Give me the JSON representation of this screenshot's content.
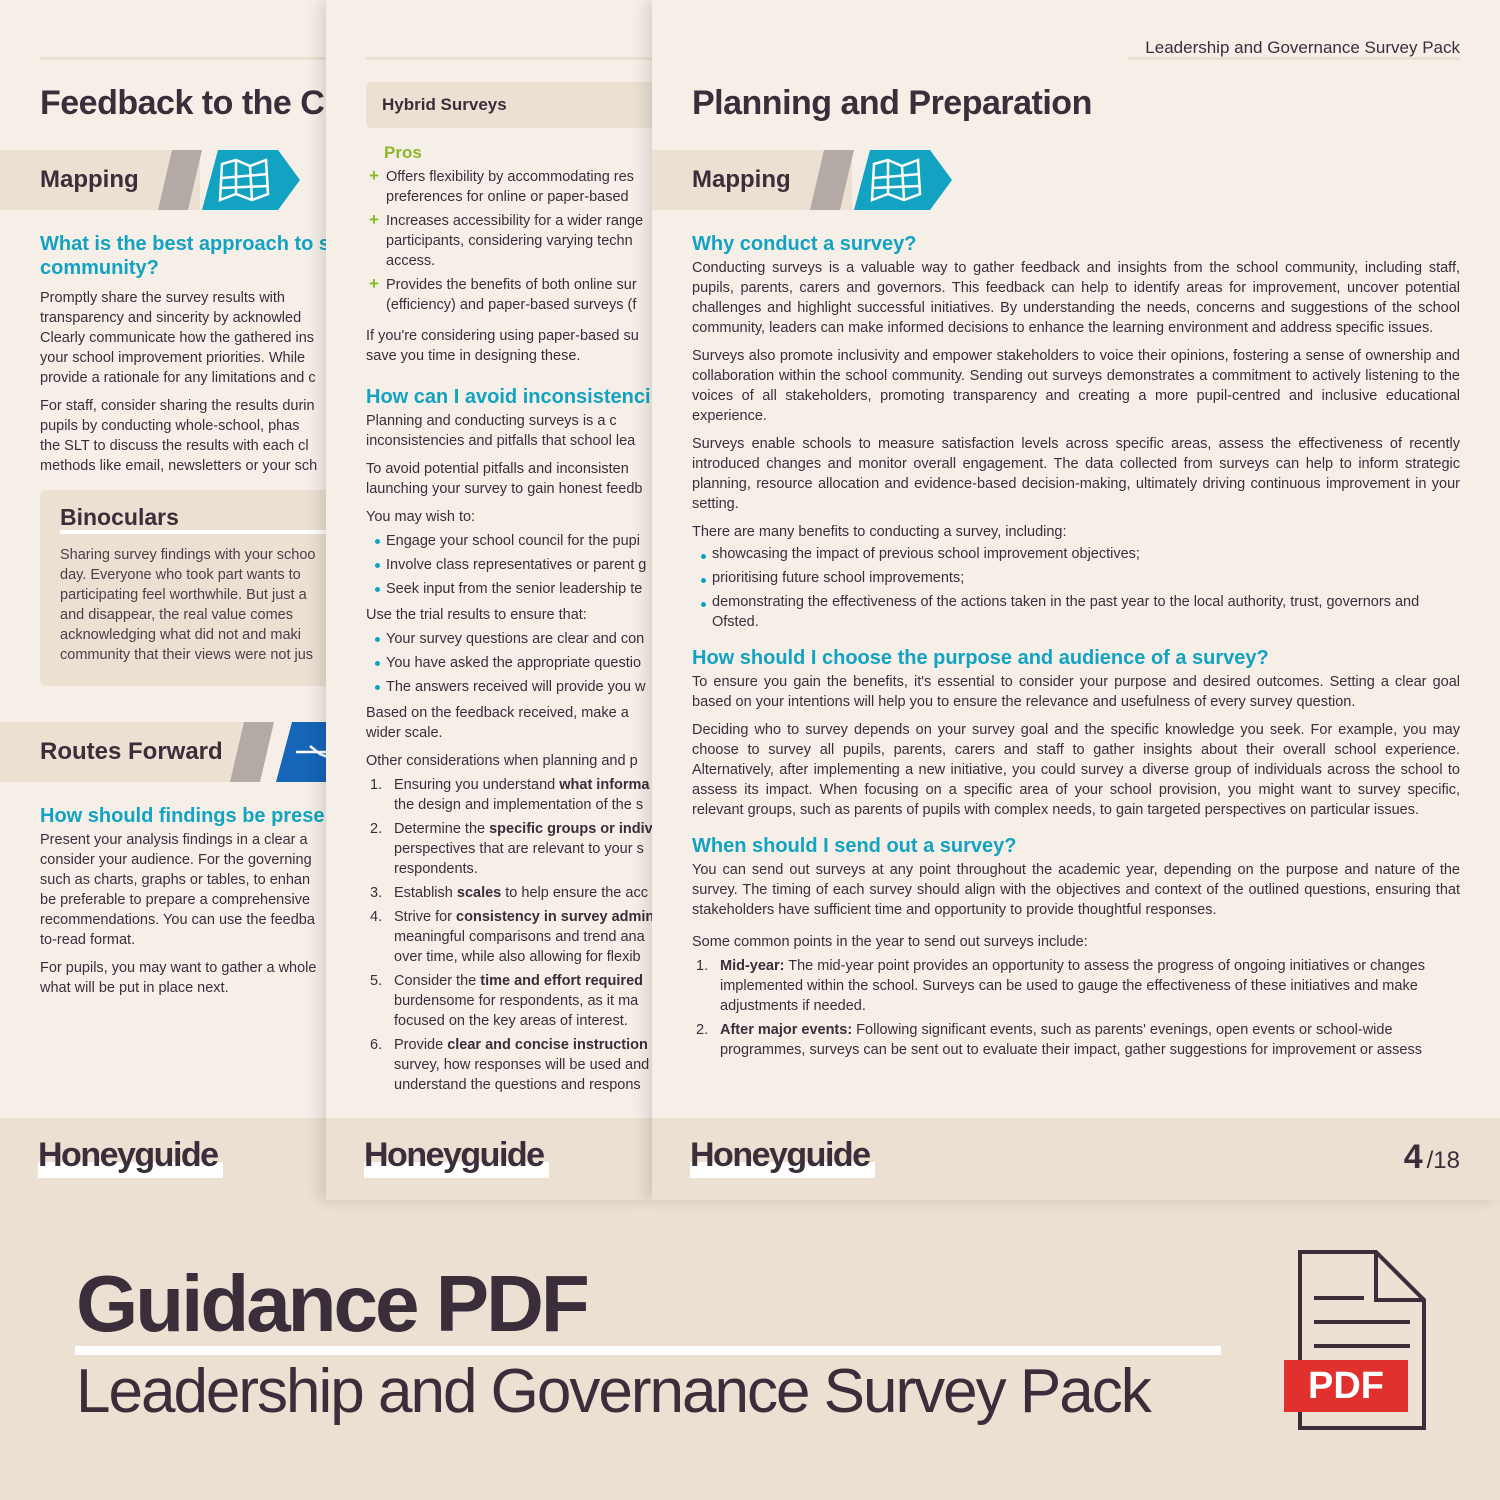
{
  "colors": {
    "teal": "#12a3c2",
    "dark": "#3a2e3b",
    "beige": "#ebe0d2",
    "page": "#f5efe8",
    "green": "#8bb82a",
    "blue": "#1565b8",
    "pdf_red": "#e0312f"
  },
  "page1": {
    "title": "Feedback to the C",
    "banner1": {
      "label": "Mapping",
      "icon": "map-icon"
    },
    "heading1": [
      "What is the best approach to s",
      "community?"
    ],
    "para1": [
      "Promptly share the survey results with",
      "transparency and sincerity by acknowled",
      "Clearly communicate how the gathered ins",
      "your school improvement priorities. While",
      "provide a rationale for any limitations and c"
    ],
    "para2": [
      "For staff, consider sharing the results durin",
      "pupils by conducting whole-school, phas",
      "the SLT to discuss the results with each cl",
      "methods like email, newsletters or your sch"
    ],
    "binoculars": {
      "title": "Binoculars",
      "lines": [
        "Sharing survey findings with your schoo",
        "day. Everyone who took part wants to",
        "participating feel worthwhile. But just a",
        "and disappear, the real value comes",
        "acknowledging what did not and maki",
        "community that their views were not jus"
      ]
    },
    "banner2": {
      "label": "Routes Forward",
      "icon": "routes-icon"
    },
    "heading2": [
      "How should findings be prese"
    ],
    "para3": [
      "Present your analysis findings in a clear a",
      "consider your audience. For the governing",
      "such as charts, graphs or tables, to enhan",
      "be preferable to prepare a comprehensive",
      "recommendations. You can use the feedba",
      "to-read format."
    ],
    "para4": [
      "For pupils, you may want to gather a whole",
      "what will be put in place next."
    ],
    "logo": "Honeyguide"
  },
  "page2": {
    "box_title": "Hybrid Surveys",
    "pros_label": "Pros",
    "pros": [
      [
        "Offers flexibility by accommodating res",
        "preferences for online or paper-based "
      ],
      [
        "Increases accessibility for a wider range",
        "participants, considering varying techn",
        "access."
      ],
      [
        "Provides the benefits of both online sur",
        "(efficiency) and paper-based surveys (f"
      ]
    ],
    "para1": [
      "If you're considering using paper-based su",
      "save you time in designing these."
    ],
    "heading": "How can I avoid inconsistenci",
    "para2": [
      "Planning and conducting surveys is a c",
      "inconsistencies and pitfalls that school lea"
    ],
    "para3": [
      "To avoid potential pitfalls and inconsisten",
      "launching your survey to gain honest feedb"
    ],
    "wish_label": "You may wish to:",
    "wish": [
      "Engage your school council for the pupi",
      "Involve class representatives or parent g",
      "Seek input from the senior leadership te"
    ],
    "trial_label": "Use the trial results to ensure that:",
    "trial": [
      "Your survey questions are clear and con",
      "You have asked the appropriate questio",
      "The answers received will provide you w"
    ],
    "para4": [
      "Based on the feedback received, make a",
      "wider scale."
    ],
    "other_label": "Other considerations when planning and p",
    "numbered": [
      {
        "n": "1.",
        "pre": "Ensuring you understand ",
        "bold": "what informa",
        "rest": [
          "the design and implementation of the s"
        ]
      },
      {
        "n": "2.",
        "pre": "Determine the ",
        "bold": "specific groups or indiv",
        "rest": [
          "perspectives that are relevant to your s",
          "respondents."
        ]
      },
      {
        "n": "3.",
        "pre": "Establish ",
        "bold": "scales",
        "post": " to help ensure the acc",
        "rest": []
      },
      {
        "n": "4.",
        "pre": "Strive for ",
        "bold": "consistency in survey admin",
        "rest": [
          "meaningful comparisons and trend ana",
          "over time, while also allowing for flexib"
        ]
      },
      {
        "n": "5.",
        "pre": "Consider the ",
        "bold": "time and effort required",
        "rest": [
          "burdensome for respondents, as it ma",
          "focused on the key areas of interest."
        ]
      },
      {
        "n": "6.",
        "pre": "Provide ",
        "bold": "clear and concise instruction",
        "rest": [
          "survey, how responses will be used and",
          "understand the questions and respons"
        ]
      }
    ],
    "logo": "Honeyguide"
  },
  "page3": {
    "header": "Leadership and Governance Survey Pack",
    "title": "Planning and Preparation",
    "banner": {
      "label": "Mapping",
      "icon": "map-icon"
    },
    "h1": "Why conduct a survey?",
    "p1": "Conducting surveys is a valuable way to gather feedback and insights from the school community, including staff, pupils, parents, carers and governors. This feedback can help to identify areas for improvement, uncover potential challenges and highlight successful initiatives. By understanding the needs, concerns and suggestions of the school community, leaders can make informed decisions to enhance the learning environment and address specific issues.",
    "p2": "Surveys also promote inclusivity and empower stakeholders to voice their opinions, fostering a sense of ownership and collaboration within the school community. Sending out surveys demonstrates a commitment to actively listening to the voices of all stakeholders, promoting transparency and creating a more pupil-centred and inclusive educational experience.",
    "p3": "Surveys enable schools to measure satisfaction levels across specific areas, assess the effectiveness of recently introduced changes and monitor overall engagement. The data collected from surveys can help to inform strategic planning, resource allocation and evidence-based decision-making, ultimately driving continuous improvement in your setting.",
    "p4": "There are many benefits to conducting a survey, including:",
    "benefits": [
      "showcasing the impact of previous school improvement objectives;",
      "prioritising future school improvements;",
      "demonstrating the effectiveness of the actions taken in the past year to the local authority, trust, governors and Ofsted."
    ],
    "h2": "How should I choose the purpose and audience of a survey?",
    "p5": "To ensure you gain the benefits, it's essential to consider your purpose and desired outcomes. Setting a clear goal based on your intentions will help you to ensure the relevance and usefulness of every survey question.",
    "p6": "Deciding who to survey depends on your survey goal and the specific knowledge you seek. For example, you may choose to survey all pupils, parents, carers and staff to gather insights about their overall school experience. Alternatively, after implementing a new initiative, you could survey a diverse group of individuals across the school to assess its impact. When focusing on a specific area of your school provision, you might want to survey specific, relevant groups, such as parents of pupils with complex needs, to gain targeted perspectives on particular issues.",
    "h3": "When should I send out a survey?",
    "p7": "You can send out surveys at any point throughout the academic year, depending on the purpose and nature of the survey. The timing of each survey should align with the objectives and context of the outlined questions, ensuring that stakeholders have sufficient time and opportunity to provide thoughtful responses.",
    "p8": "Some common points in the year to send out surveys include:",
    "points": [
      {
        "n": "1.",
        "bold": "Mid-year:",
        "text": " The mid-year point provides an opportunity to assess the progress of ongoing initiatives or changes implemented within the school. Surveys can be used to gauge the effectiveness of these initiatives and make adjustments if needed."
      },
      {
        "n": "2.",
        "bold": "After major events:",
        "text": " Following significant events, such as parents' evenings, open events or school-wide programmes, surveys can be sent out to evaluate their impact, gather suggestions for improvement or assess"
      }
    ],
    "logo": "Honeyguide",
    "page_current": "4",
    "page_total": "/18"
  },
  "promo": {
    "title": "Guidance PDF",
    "subtitle": "Leadership and Governance Survey Pack",
    "pdf_label": "PDF",
    "icon": "pdf-file-icon"
  }
}
